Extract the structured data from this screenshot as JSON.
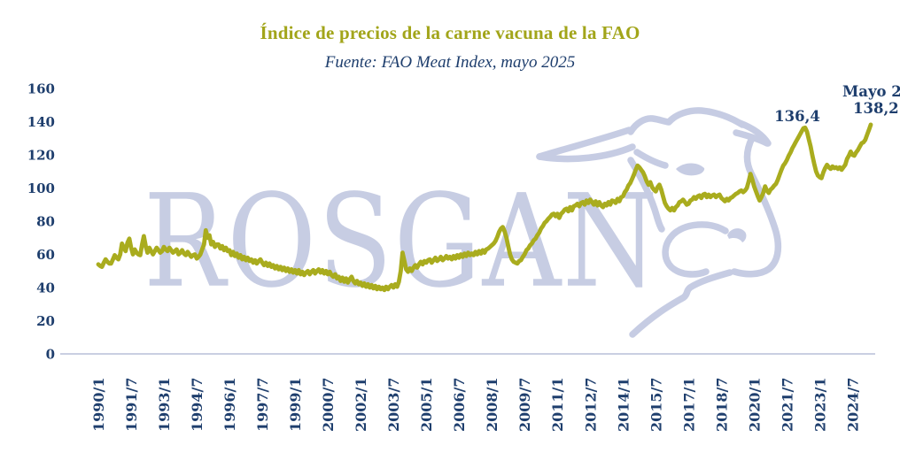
{
  "title": "Índice de precios de la carne vacuna de la FAO",
  "subtitle": "Fuente: FAO Meat Index, mayo 2025",
  "watermark": {
    "text": "ROSGAN",
    "icon": "cow-outline-icon"
  },
  "annotations": {
    "peak_value_label": "136,4",
    "latest_date_label": "Mayo 2",
    "latest_value_label": "138,2"
  },
  "colors": {
    "line": "#a9ac1e",
    "title": "#a2a51a",
    "axis_text": "#1e3e6d",
    "watermark": "#c7cde3",
    "baseline": "#b8bfd8"
  },
  "chart_data": {
    "type": "line",
    "title": "Índice de precios de la carne vacuna de la FAO",
    "source": "Fuente: FAO Meat Index, mayo 2025",
    "x_start": "1990/1",
    "x_end": "2025/5",
    "x_tick_labels": [
      "1990/1",
      "1991/7",
      "1993/1",
      "1994/7",
      "1996/1",
      "1997/7",
      "1999/1",
      "2000/7",
      "2002/1",
      "2003/7",
      "2005/1",
      "2006/7",
      "2008/1",
      "2009/7",
      "2011/1",
      "2012/7",
      "2014/1",
      "2015/7",
      "2017/1",
      "2018/7",
      "2020/1",
      "2021/7",
      "2023/1",
      "2024/7"
    ],
    "x_tick_interval_months": 18,
    "y_ticks": [
      0,
      20,
      40,
      60,
      80,
      100,
      120,
      140,
      160
    ],
    "ylim": [
      0,
      160
    ],
    "grid": false,
    "annotations": [
      {
        "x": "2022/5",
        "value": 136.4,
        "label": "136,4"
      },
      {
        "x": "2025/5",
        "value": 138.2,
        "label": "Mayo 2 138,2"
      }
    ],
    "values_monthly": [
      54,
      53,
      52.5,
      55,
      57,
      55.5,
      54.5,
      54.5,
      57,
      59.5,
      58,
      57,
      60,
      66.5,
      64,
      62,
      67,
      69.5,
      64,
      60,
      63,
      61,
      60,
      59.5,
      66,
      71,
      65,
      61,
      64,
      62,
      60,
      62,
      64,
      62.5,
      61,
      62,
      64.5,
      63,
      62,
      64,
      62.5,
      61,
      62,
      63,
      60,
      61,
      62.5,
      60.5,
      59.5,
      61.5,
      60,
      58.5,
      59.5,
      60,
      57.5,
      58.5,
      60,
      63,
      66,
      74.5,
      70,
      71.5,
      66,
      67.5,
      64.5,
      66,
      66,
      63.5,
      65,
      62.5,
      64,
      62,
      62.5,
      59.5,
      61.5,
      59,
      60.5,
      58,
      59.5,
      57,
      58.5,
      56.5,
      58,
      56,
      57,
      55,
      56.5,
      54.5,
      56,
      57,
      55,
      53.5,
      55,
      53,
      54.5,
      52.5,
      53.5,
      51.5,
      53,
      51,
      52.5,
      50.5,
      52,
      50,
      51.5,
      49.5,
      51,
      49,
      50.5,
      48.5,
      50.5,
      48,
      49.5,
      47.5,
      49,
      50,
      48,
      49.5,
      50.5,
      48.5,
      50,
      51,
      49,
      50.5,
      48.5,
      50,
      48,
      49.5,
      47.5,
      46.5,
      48,
      45.5,
      46.5,
      44,
      46,
      43.5,
      45.5,
      43,
      45,
      46.5,
      44,
      42.5,
      44,
      42,
      43,
      41,
      42.5,
      40.5,
      42,
      40,
      41.5,
      39.5,
      41,
      39,
      40.5,
      39,
      40,
      38.5,
      40.5,
      39,
      40.5,
      41.5,
      40,
      42,
      40.5,
      43.5,
      50,
      61,
      56,
      51,
      49.5,
      51.5,
      50,
      52,
      53.5,
      52,
      54,
      55.5,
      54,
      56,
      55,
      56.5,
      57,
      55,
      56.5,
      58,
      56,
      57,
      58.5,
      56.5,
      57.5,
      59,
      57.5,
      58.5,
      57,
      59,
      57.5,
      59.5,
      58,
      60,
      58.5,
      60.5,
      59,
      61,
      59.5,
      60.5,
      59.5,
      61.5,
      60,
      62,
      60.5,
      62.5,
      61,
      63,
      63.5,
      64.5,
      65.5,
      66.5,
      68,
      70.5,
      73.5,
      75.5,
      76.5,
      74,
      70,
      65,
      60,
      57,
      55.5,
      55,
      54.5,
      56,
      56.5,
      58.5,
      60,
      62.5,
      63.5,
      65.5,
      66.5,
      68.5,
      69.5,
      71.5,
      73,
      75.5,
      77,
      79,
      80,
      81.5,
      82.5,
      84,
      84.5,
      83,
      84.5,
      82,
      84.5,
      85.5,
      87,
      87.5,
      86,
      88.5,
      86.5,
      89,
      89.5,
      90.5,
      89,
      91,
      91.5,
      90,
      92.5,
      91,
      93,
      91.5,
      90,
      92,
      89.5,
      91.5,
      89.5,
      88.5,
      90.5,
      89.5,
      91.5,
      90,
      92.5,
      92,
      91,
      93.5,
      92,
      94.5,
      95,
      97.5,
      99,
      101.5,
      103,
      105.5,
      108,
      111,
      113.5,
      112.5,
      111,
      109.5,
      107,
      104,
      102,
      103.5,
      100.5,
      99,
      98,
      100.5,
      102,
      99,
      95,
      91,
      89,
      87.5,
      86.5,
      88,
      86.5,
      88.5,
      89.5,
      91.5,
      92,
      93,
      91.5,
      90,
      90.5,
      92.5,
      93,
      94.5,
      93.5,
      95,
      95.5,
      94,
      96,
      96.5,
      94.5,
      96,
      94.5,
      95.5,
      96,
      94.5,
      95.5,
      96,
      94,
      93,
      92,
      93.5,
      92.5,
      94,
      94.5,
      95.5,
      96.5,
      97,
      98,
      98.5,
      97.5,
      98.5,
      100,
      104,
      108.5,
      105,
      101,
      98,
      95,
      92.5,
      94.5,
      97,
      101,
      98.5,
      97,
      99,
      100,
      101.5,
      102.5,
      105,
      108,
      111,
      113.5,
      115,
      117,
      119.5,
      121.5,
      124,
      126,
      128,
      130,
      132,
      134,
      136,
      136.4,
      134,
      129.5,
      125,
      119.5,
      114.5,
      110,
      107.5,
      106.5,
      106,
      109.5,
      112,
      114,
      112.5,
      111.5,
      113,
      112,
      112.5,
      111.5,
      112.5,
      111,
      112.5,
      114,
      117.5,
      119.5,
      122,
      120,
      119.5,
      121.5,
      123,
      125,
      127,
      127.5,
      129,
      132,
      135,
      138.2
    ]
  }
}
